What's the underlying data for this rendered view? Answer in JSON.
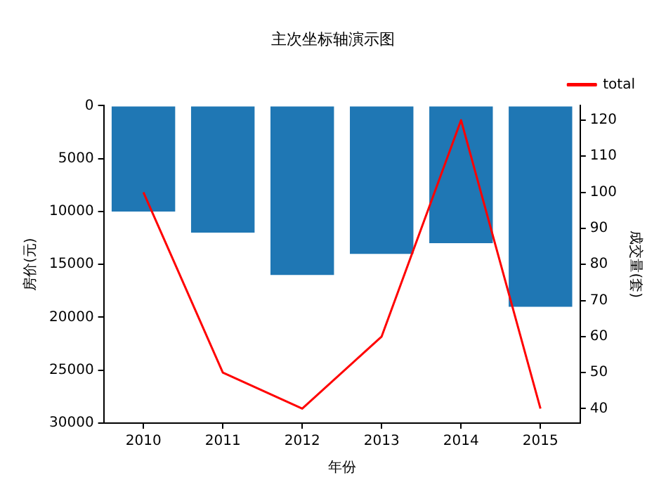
{
  "chart_data": {
    "type": "bar",
    "title": "主次坐标轴演示图",
    "xlabel": "年份",
    "ylabel": "房价(元)",
    "y2label": "成交量(套)",
    "categories": [
      "2010",
      "2011",
      "2012",
      "2013",
      "2014",
      "2015"
    ],
    "series": [
      {
        "color": "#1f77b4",
        "values": [
          10000,
          12000,
          16000,
          14000,
          13000,
          19000
        ]
      },
      {
        "type": "line",
        "name": "total",
        "color": "#ff0000",
        "axis": "y2",
        "values": [
          100,
          50,
          40,
          60,
          120,
          40
        ]
      }
    ],
    "ylim": [
      30000,
      0
    ],
    "yticks": [
      0,
      5000,
      10000,
      15000,
      20000,
      25000,
      30000
    ],
    "y2lim": [
      36,
      124
    ],
    "y2ticks": [
      40,
      50,
      60,
      70,
      80,
      90,
      100,
      110,
      120
    ],
    "grid": false,
    "legend": "top right"
  }
}
